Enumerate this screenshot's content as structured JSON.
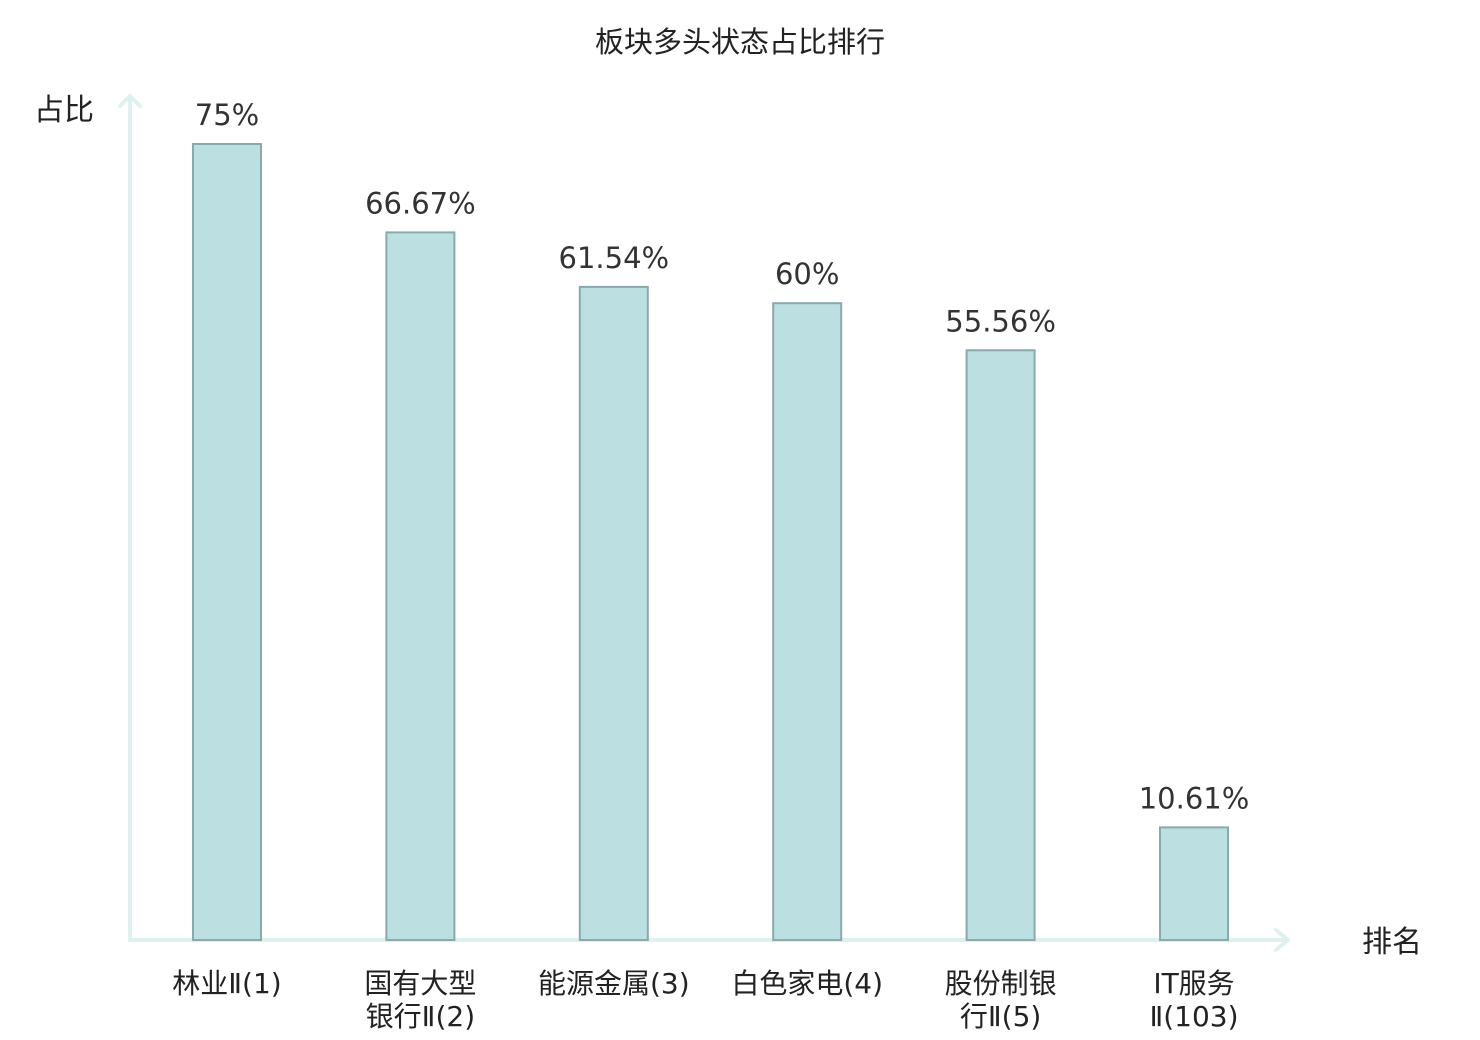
{
  "chart_data": {
    "type": "bar",
    "title": "板块多头状态占比排行",
    "ylabel": "占比",
    "xlabel": "排名",
    "categories": [
      [
        "林业Ⅱ(1)"
      ],
      [
        "国有大型",
        "银行Ⅱ(2)"
      ],
      [
        "能源金属(3)"
      ],
      [
        "白色家电(4)"
      ],
      [
        "股份制银",
        "行Ⅱ(5)"
      ],
      [
        "IT服务",
        "Ⅱ(103)"
      ]
    ],
    "values": [
      75,
      66.67,
      61.54,
      60,
      55.56,
      10.61
    ],
    "value_labels": [
      "75%",
      "66.67%",
      "61.54%",
      "60%",
      "55.56%",
      "10.61%"
    ],
    "highlight_index": 5,
    "ylim": [
      0,
      75
    ],
    "grid": false,
    "colors": {
      "bar_fill": "#bce0e2",
      "bar_stroke": "#89a9ab",
      "axis": "#dff1ee",
      "highlight_text": "#e02020",
      "text": "#222222"
    }
  }
}
